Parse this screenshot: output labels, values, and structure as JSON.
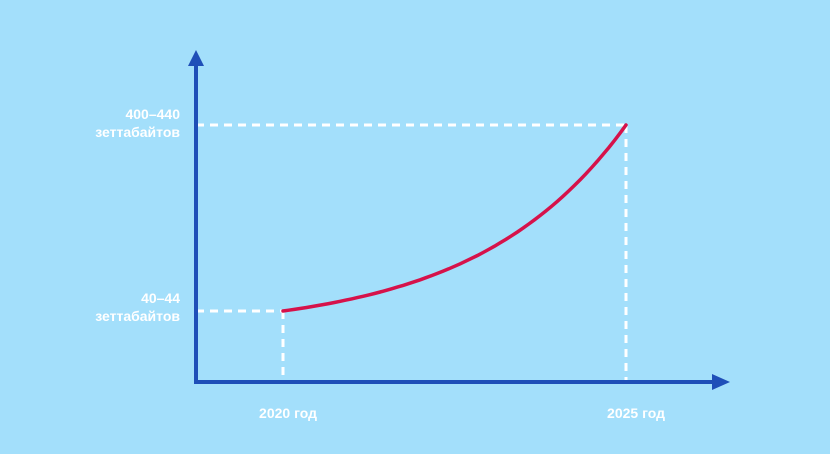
{
  "colors": {
    "background": "#a3dffb",
    "axis": "#1f4fb8",
    "curve": "#d6124a",
    "guides": "#ffffff",
    "labels": "#ffffff"
  },
  "chart_data": {
    "type": "line",
    "title": "",
    "xlabel": "",
    "ylabel": "",
    "grid": false,
    "x_ticks": [
      {
        "value": 2020,
        "label": "2020 год"
      },
      {
        "value": 2025,
        "label": "2025 год"
      }
    ],
    "y_ticks": [
      {
        "value": 42,
        "line1": "40–44",
        "line2": "зеттабайтов"
      },
      {
        "value": 420,
        "line1": "400–440",
        "line2": "зеттабайтов"
      }
    ],
    "series": [
      {
        "x": [
          2020,
          2021,
          2022,
          2023,
          2024,
          2025
        ],
        "y": [
          42,
          66,
          105,
          167,
          265,
          420
        ]
      }
    ]
  }
}
